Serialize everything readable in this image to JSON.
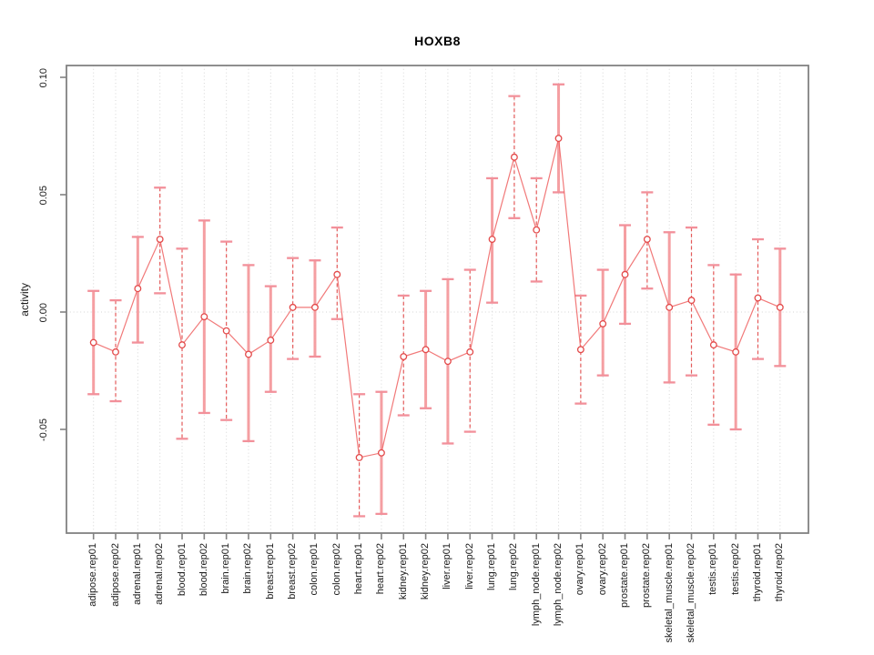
{
  "title": "HOXB8",
  "chart_data": {
    "type": "line",
    "subtype": "point-estimates-with-error-bars",
    "title": "HOXB8",
    "xlabel": "",
    "ylabel": "activity",
    "legend": "none",
    "grid": "vertical dotted gridline at every category; dotted horizontal line at y=0",
    "ylim": [
      -0.094,
      0.105
    ],
    "yticks": [
      {
        "value": 0.1,
        "label": "0.10"
      },
      {
        "value": 0.05,
        "label": "0.05"
      },
      {
        "value": 0.0,
        "label": "0.00"
      },
      {
        "value": -0.05,
        "label": "-0.05"
      }
    ],
    "categories": [
      "adipose.rep01",
      "adipose.rep02",
      "adrenal.rep01",
      "adrenal.rep02",
      "blood.rep01",
      "blood.rep02",
      "brain.rep01",
      "brain.rep02",
      "breast.rep01",
      "breast.rep02",
      "colon.rep01",
      "colon.rep02",
      "heart.rep01",
      "heart.rep02",
      "kidney.rep01",
      "kidney.rep02",
      "liver.rep01",
      "liver.rep02",
      "lung.rep01",
      "lung.rep02",
      "lymph_node.rep01",
      "lymph_node.rep02",
      "ovary.rep01",
      "ovary.rep02",
      "prostate.rep01",
      "prostate.rep02",
      "skeletal_muscle.rep01",
      "skeletal_muscle.rep02",
      "testis.rep01",
      "testis.rep02",
      "thyroid.rep01",
      "thyroid.rep02"
    ],
    "points": [
      {
        "label": "adipose.rep01",
        "value": -0.013,
        "lo": -0.035,
        "hi": 0.009,
        "bar_style": "solid"
      },
      {
        "label": "adipose.rep02",
        "value": -0.017,
        "lo": -0.038,
        "hi": 0.005,
        "bar_style": "dashed"
      },
      {
        "label": "adrenal.rep01",
        "value": 0.01,
        "lo": -0.013,
        "hi": 0.032,
        "bar_style": "solid"
      },
      {
        "label": "adrenal.rep02",
        "value": 0.031,
        "lo": 0.008,
        "hi": 0.053,
        "bar_style": "dashed"
      },
      {
        "label": "blood.rep01",
        "value": -0.014,
        "lo": -0.054,
        "hi": 0.027,
        "bar_style": "dashed"
      },
      {
        "label": "blood.rep02",
        "value": -0.002,
        "lo": -0.043,
        "hi": 0.039,
        "bar_style": "solid"
      },
      {
        "label": "brain.rep01",
        "value": -0.008,
        "lo": -0.046,
        "hi": 0.03,
        "bar_style": "dashed"
      },
      {
        "label": "brain.rep02",
        "value": -0.018,
        "lo": -0.055,
        "hi": 0.02,
        "bar_style": "solid"
      },
      {
        "label": "breast.rep01",
        "value": -0.012,
        "lo": -0.034,
        "hi": 0.011,
        "bar_style": "solid"
      },
      {
        "label": "breast.rep02",
        "value": 0.002,
        "lo": -0.02,
        "hi": 0.023,
        "bar_style": "dashed"
      },
      {
        "label": "colon.rep01",
        "value": 0.002,
        "lo": -0.019,
        "hi": 0.022,
        "bar_style": "solid"
      },
      {
        "label": "colon.rep02",
        "value": 0.016,
        "lo": -0.003,
        "hi": 0.036,
        "bar_style": "dashed"
      },
      {
        "label": "heart.rep01",
        "value": -0.062,
        "lo": -0.087,
        "hi": -0.035,
        "bar_style": "dashed"
      },
      {
        "label": "heart.rep02",
        "value": -0.06,
        "lo": -0.086,
        "hi": -0.034,
        "bar_style": "solid"
      },
      {
        "label": "kidney.rep01",
        "value": -0.019,
        "lo": -0.044,
        "hi": 0.007,
        "bar_style": "dashed"
      },
      {
        "label": "kidney.rep02",
        "value": -0.016,
        "lo": -0.041,
        "hi": 0.009,
        "bar_style": "solid"
      },
      {
        "label": "liver.rep01",
        "value": -0.021,
        "lo": -0.056,
        "hi": 0.014,
        "bar_style": "solid"
      },
      {
        "label": "liver.rep02",
        "value": -0.017,
        "lo": -0.051,
        "hi": 0.018,
        "bar_style": "dashed"
      },
      {
        "label": "lung.rep01",
        "value": 0.031,
        "lo": 0.004,
        "hi": 0.057,
        "bar_style": "solid"
      },
      {
        "label": "lung.rep02",
        "value": 0.066,
        "lo": 0.04,
        "hi": 0.092,
        "bar_style": "dashed"
      },
      {
        "label": "lymph_node.rep01",
        "value": 0.035,
        "lo": 0.013,
        "hi": 0.057,
        "bar_style": "dashed"
      },
      {
        "label": "lymph_node.rep02",
        "value": 0.074,
        "lo": 0.051,
        "hi": 0.097,
        "bar_style": "solid"
      },
      {
        "label": "ovary.rep01",
        "value": -0.016,
        "lo": -0.039,
        "hi": 0.007,
        "bar_style": "dashed"
      },
      {
        "label": "ovary.rep02",
        "value": -0.005,
        "lo": -0.027,
        "hi": 0.018,
        "bar_style": "solid"
      },
      {
        "label": "prostate.rep01",
        "value": 0.016,
        "lo": -0.005,
        "hi": 0.037,
        "bar_style": "solid"
      },
      {
        "label": "prostate.rep02",
        "value": 0.031,
        "lo": 0.01,
        "hi": 0.051,
        "bar_style": "dashed"
      },
      {
        "label": "skeletal_muscle.rep01",
        "value": 0.002,
        "lo": -0.03,
        "hi": 0.034,
        "bar_style": "solid"
      },
      {
        "label": "skeletal_muscle.rep02",
        "value": 0.005,
        "lo": -0.027,
        "hi": 0.036,
        "bar_style": "dashed"
      },
      {
        "label": "testis.rep01",
        "value": -0.014,
        "lo": -0.048,
        "hi": 0.02,
        "bar_style": "dashed"
      },
      {
        "label": "testis.rep02",
        "value": -0.017,
        "lo": -0.05,
        "hi": 0.016,
        "bar_style": "solid"
      },
      {
        "label": "thyroid.rep01",
        "value": 0.006,
        "lo": -0.02,
        "hi": 0.031,
        "bar_style": "dashed"
      },
      {
        "label": "thyroid.rep02",
        "value": 0.002,
        "lo": -0.023,
        "hi": 0.027,
        "bar_style": "solid"
      }
    ]
  },
  "colors": {
    "series_red": "#e34a4a",
    "line_red": "#ee6161",
    "solid_bar_pink": "#f59a9e",
    "cap_pink": "#f2909a",
    "grid_gray": "#d6d6d6",
    "axis_gray": "#828282",
    "text": "#1a1a1a",
    "title": "#000000",
    "background": "#ffffff"
  }
}
